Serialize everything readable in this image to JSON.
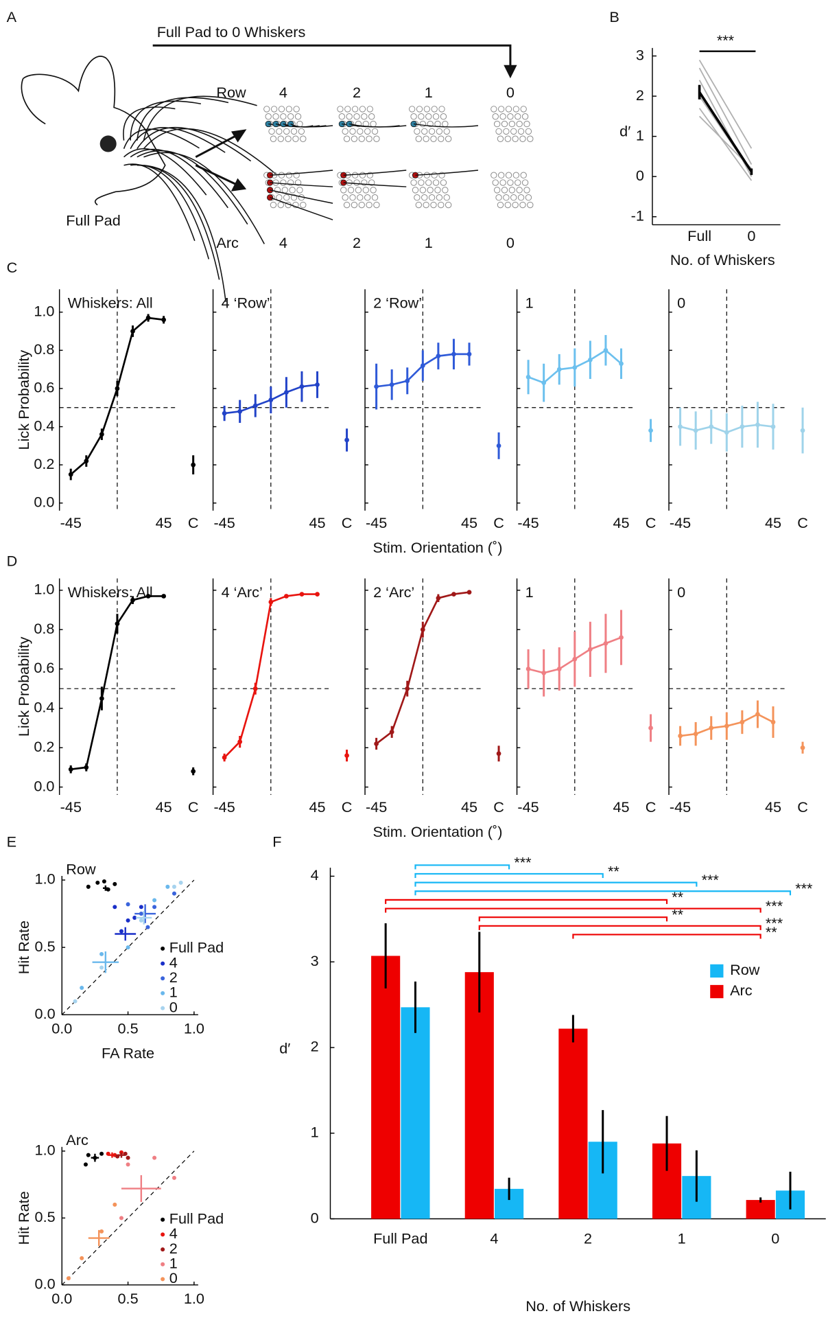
{
  "panel_labels": [
    "A",
    "B",
    "C",
    "D",
    "E",
    "F"
  ],
  "diagram": {
    "title": "Full Pad to 0 Whiskers",
    "row_label": "Row",
    "arc_label": "Arc",
    "row_counts": [
      "4",
      "2",
      "1",
      "0"
    ],
    "arc_counts": [
      "4",
      "2",
      "1",
      "0"
    ],
    "caption": "Full Pad"
  },
  "chart_data": [
    {
      "type": "paired-line",
      "xlabel": "No. of Whiskers",
      "ylabel": "d′",
      "annotation": "***",
      "categories": [
        "Full",
        "0"
      ],
      "ylim": [
        -1.2,
        3.2
      ],
      "yticks": [
        -1,
        0,
        1,
        2,
        3
      ],
      "series": [
        {
          "color": "#b0b0b0",
          "values": [
            2.9,
            0.7
          ]
        },
        {
          "color": "#b0b0b0",
          "values": [
            2.7,
            0.3
          ]
        },
        {
          "color": "#b0b0b0",
          "values": [
            2.4,
            0.0
          ]
        },
        {
          "color": "#b0b0b0",
          "values": [
            2.0,
            0.1
          ]
        },
        {
          "color": "#b0b0b0",
          "values": [
            1.7,
            -0.1
          ]
        },
        {
          "color": "#b0b0b0",
          "values": [
            1.5,
            0.2
          ]
        }
      ],
      "mean": {
        "color": "#000000",
        "values": [
          2.1,
          0.12
        ],
        "errors": [
          0.18,
          0.08
        ]
      }
    },
    {
      "type": "line-panels",
      "xlabel": "Stim. Orientation (˚)",
      "ylabel": "Lick Probability",
      "x": [
        -45,
        -30,
        -15,
        0,
        15,
        30,
        45
      ],
      "xlim": [
        -56,
        56
      ],
      "xticks": [
        -45,
        45
      ],
      "catch_label": "C",
      "ylim": [
        -0.04,
        1.12
      ],
      "yticks": [
        {
          "value": 0,
          "label": "0.0"
        },
        {
          "value": 0.2,
          "label": "0.2"
        },
        {
          "value": 0.4,
          "label": "0.4"
        },
        {
          "value": 0.6,
          "label": "0.6"
        },
        {
          "value": 0.8,
          "label": "0.8"
        },
        {
          "value": 1,
          "label": "1.0"
        }
      ],
      "hline": 0.5,
      "vline": 0,
      "panels": [
        {
          "title": "Whiskers: All",
          "color": "#000000",
          "values": [
            0.15,
            0.22,
            0.36,
            0.6,
            0.9,
            0.97,
            0.96
          ],
          "errors": [
            0.03,
            0.03,
            0.03,
            0.04,
            0.03,
            0.02,
            0.02
          ],
          "catch_value": 0.2,
          "catch_error": 0.05
        },
        {
          "title": "4 ‘Row’",
          "color": "#2243c8",
          "values": [
            0.47,
            0.48,
            0.51,
            0.54,
            0.58,
            0.61,
            0.62
          ],
          "errors": [
            0.04,
            0.06,
            0.06,
            0.07,
            0.08,
            0.08,
            0.07
          ],
          "catch_value": 0.33,
          "catch_error": 0.06
        },
        {
          "title": "2 ‘Row’",
          "color": "#2f5ad8",
          "values": [
            0.61,
            0.62,
            0.64,
            0.72,
            0.77,
            0.78,
            0.78
          ],
          "errors": [
            0.12,
            0.08,
            0.07,
            0.08,
            0.07,
            0.08,
            0.06
          ],
          "catch_value": 0.3,
          "catch_error": 0.07
        },
        {
          "title": "1",
          "color": "#6cc0ee",
          "values": [
            0.66,
            0.63,
            0.7,
            0.71,
            0.75,
            0.8,
            0.73
          ],
          "errors": [
            0.09,
            0.1,
            0.08,
            0.1,
            0.1,
            0.08,
            0.08
          ],
          "catch_value": 0.38,
          "catch_error": 0.06
        },
        {
          "title": "0",
          "color": "#9fd3ea",
          "values": [
            0.4,
            0.38,
            0.4,
            0.37,
            0.4,
            0.41,
            0.4
          ],
          "errors": [
            0.1,
            0.1,
            0.09,
            0.1,
            0.11,
            0.12,
            0.12
          ],
          "catch_value": 0.38,
          "catch_error": 0.12
        }
      ]
    },
    {
      "type": "line-panels",
      "xlabel": "Stim. Orientation (˚)",
      "ylabel": "Lick Probability",
      "x": [
        -45,
        -30,
        -15,
        0,
        15,
        30,
        45
      ],
      "xlim": [
        -56,
        56
      ],
      "xticks": [
        -45,
        45
      ],
      "catch_label": "C",
      "ylim": [
        -0.04,
        1.06
      ],
      "yticks": [
        {
          "value": 0,
          "label": "0.0"
        },
        {
          "value": 0.2,
          "label": "0.2"
        },
        {
          "value": 0.4,
          "label": "0.4"
        },
        {
          "value": 0.6,
          "label": "0.6"
        },
        {
          "value": 0.8,
          "label": "0.8"
        },
        {
          "value": 1,
          "label": "1.0"
        }
      ],
      "hline": 0.5,
      "vline": 0,
      "panels": [
        {
          "title": "Whiskers: All",
          "color": "#000000",
          "values": [
            0.09,
            0.1,
            0.45,
            0.83,
            0.95,
            0.97,
            0.97
          ],
          "errors": [
            0.02,
            0.02,
            0.06,
            0.05,
            0.02,
            0.01,
            0.01
          ],
          "catch_value": 0.08,
          "catch_error": 0.02
        },
        {
          "title": "4 ‘Arc’",
          "color": "#e8140f",
          "values": [
            0.15,
            0.23,
            0.5,
            0.94,
            0.97,
            0.98,
            0.98
          ],
          "errors": [
            0.02,
            0.03,
            0.03,
            0.02,
            0.01,
            0.01,
            0.01
          ],
          "catch_value": 0.16,
          "catch_error": 0.03
        },
        {
          "title": "2 ‘Arc’",
          "color": "#a01818",
          "values": [
            0.22,
            0.28,
            0.5,
            0.8,
            0.96,
            0.98,
            0.99
          ],
          "errors": [
            0.03,
            0.03,
            0.04,
            0.04,
            0.02,
            0.01,
            0.01
          ],
          "catch_value": 0.17,
          "catch_error": 0.04
        },
        {
          "title": "1",
          "color": "#ef7f84",
          "values": [
            0.6,
            0.58,
            0.6,
            0.65,
            0.7,
            0.73,
            0.76
          ],
          "errors": [
            0.1,
            0.12,
            0.11,
            0.14,
            0.14,
            0.15,
            0.14
          ],
          "catch_value": 0.3,
          "catch_error": 0.07
        },
        {
          "title": "0",
          "color": "#f4935a",
          "values": [
            0.26,
            0.27,
            0.3,
            0.31,
            0.33,
            0.37,
            0.33
          ],
          "errors": [
            0.05,
            0.06,
            0.06,
            0.07,
            0.06,
            0.07,
            0.08
          ],
          "catch_value": 0.2,
          "catch_error": 0.03
        }
      ]
    },
    {
      "type": "scatter",
      "title": "Row",
      "xlabel": "FA Rate",
      "ylabel": "Hit Rate",
      "xlim": [
        0,
        1
      ],
      "ylim": [
        0,
        1
      ],
      "xticks": [
        {
          "value": 0,
          "label": "0.0"
        },
        {
          "value": 0.5,
          "label": "0.5"
        },
        {
          "value": 1,
          "label": "1.0"
        }
      ],
      "yticks": [
        {
          "value": 0,
          "label": "0.0"
        },
        {
          "value": 0.5,
          "label": "0.5"
        },
        {
          "value": 1,
          "label": "1.0"
        }
      ],
      "series": [
        {
          "name": "Full Pad",
          "color": "#000000",
          "x": [
            0.2,
            0.27,
            0.32,
            0.4,
            0.35
          ],
          "y": [
            0.95,
            0.98,
            0.99,
            0.97,
            0.93
          ],
          "mean_x": 0.33,
          "mean_y": 0.94,
          "xerr": 0.02,
          "yerr": 0.02
        },
        {
          "name": "4",
          "color": "#1a2fc8",
          "x": [
            0.4,
            0.45,
            0.5,
            0.55,
            0.6
          ],
          "y": [
            0.8,
            0.62,
            0.7,
            0.72,
            0.8
          ],
          "mean_x": 0.48,
          "mean_y": 0.6,
          "xerr": 0.08,
          "yerr": 0.05
        },
        {
          "name": "2",
          "color": "#3a64dc",
          "x": [
            0.5,
            0.6,
            0.7,
            0.65,
            0.85
          ],
          "y": [
            0.82,
            0.75,
            0.8,
            0.65,
            0.9
          ],
          "mean_x": 0.63,
          "mean_y": 0.75,
          "xerr": 0.08,
          "yerr": 0.07
        },
        {
          "name": "1",
          "color": "#6ab8ec",
          "x": [
            0.3,
            0.5,
            0.7,
            0.8,
            0.15
          ],
          "y": [
            0.45,
            0.5,
            0.85,
            0.95,
            0.2
          ],
          "mean_x": 0.33,
          "mean_y": 0.39,
          "xerr": 0.1,
          "yerr": 0.08
        },
        {
          "name": "0",
          "color": "#a7d3ee",
          "x": [
            0.1,
            0.85,
            0.9,
            0.3,
            0.6
          ],
          "y": [
            0.1,
            0.95,
            0.98,
            0.35,
            0.7
          ],
          "mean_x": 0.62,
          "mean_y": 0.72,
          "xerr": 0.06,
          "yerr": 0.05
        }
      ]
    },
    {
      "type": "scatter",
      "title": "Arc",
      "xlabel": "FA Rate",
      "ylabel": "Hit Rate",
      "xlim": [
        0,
        1
      ],
      "ylim": [
        0,
        1
      ],
      "xticks": [
        {
          "value": 0,
          "label": "0.0"
        },
        {
          "value": 0.5,
          "label": "0.5"
        },
        {
          "value": 1,
          "label": "1.0"
        }
      ],
      "yticks": [
        {
          "value": 0,
          "label": "0.0"
        },
        {
          "value": 0.5,
          "label": "0.5"
        },
        {
          "value": 1,
          "label": "1.0"
        }
      ],
      "series": [
        {
          "name": "Full Pad",
          "color": "#000000",
          "x": [
            0.2,
            0.18,
            0.25,
            0.3
          ],
          "y": [
            0.97,
            0.9,
            0.95,
            0.98
          ],
          "mean_x": 0.25,
          "mean_y": 0.95,
          "xerr": 0.03,
          "yerr": 0.03
        },
        {
          "name": "4",
          "color": "#e8140f",
          "x": [
            0.35,
            0.4,
            0.45
          ],
          "y": [
            0.98,
            0.97,
            0.99
          ],
          "mean_x": 0.38,
          "mean_y": 0.97,
          "xerr": 0.03,
          "yerr": 0.02
        },
        {
          "name": "2",
          "color": "#a01818",
          "x": [
            0.42,
            0.48,
            0.5
          ],
          "y": [
            0.96,
            0.98,
            0.95
          ],
          "mean_x": 0.45,
          "mean_y": 0.97,
          "xerr": 0.03,
          "yerr": 0.02
        },
        {
          "name": "1",
          "color": "#ef7f84",
          "x": [
            0.5,
            0.7,
            0.85,
            0.45
          ],
          "y": [
            0.9,
            0.95,
            0.8,
            0.5
          ],
          "mean_x": 0.6,
          "mean_y": 0.72,
          "xerr": 0.15,
          "yerr": 0.1
        },
        {
          "name": "0",
          "color": "#f4935a",
          "x": [
            0.05,
            0.15,
            0.3,
            0.4
          ],
          "y": [
            0.05,
            0.2,
            0.4,
            0.6
          ],
          "mean_x": 0.28,
          "mean_y": 0.35,
          "xerr": 0.08,
          "yerr": 0.06
        }
      ]
    },
    {
      "type": "bar",
      "xlabel": "No. of Whiskers",
      "ylabel": "d′",
      "categories": [
        "Full Pad",
        "4",
        "2",
        "1",
        "0"
      ],
      "ylim": [
        0,
        4.1
      ],
      "yticks": [
        0,
        1,
        2,
        3,
        4
      ],
      "series": [
        {
          "name": "Row",
          "color": "#16b7f5",
          "values": [
            2.47,
            0.35,
            0.9,
            0.5,
            0.33
          ],
          "errors": [
            0.3,
            0.13,
            0.37,
            0.3,
            0.22
          ]
        },
        {
          "name": "Arc",
          "color": "#ee0000",
          "values": [
            3.07,
            2.88,
            2.22,
            0.88,
            0.22
          ],
          "errors": [
            0.38,
            0.47,
            0.16,
            0.32,
            0.03
          ]
        }
      ],
      "brackets": [
        {
          "series": 0,
          "from": 0,
          "to": 1,
          "label": "***"
        },
        {
          "series": 0,
          "from": 0,
          "to": 2,
          "label": "**"
        },
        {
          "series": 0,
          "from": 0,
          "to": 3,
          "label": "***"
        },
        {
          "series": 0,
          "from": 0,
          "to": 4,
          "label": "***"
        },
        {
          "series": 1,
          "from": 0,
          "to": 3,
          "label": "**"
        },
        {
          "series": 1,
          "from": 0,
          "to": 4,
          "label": "***"
        },
        {
          "series": 1,
          "from": 1,
          "to": 3,
          "label": "**"
        },
        {
          "series": 1,
          "from": 1,
          "to": 4,
          "label": "***"
        },
        {
          "series": 1,
          "from": 2,
          "to": 4,
          "label": "**"
        }
      ]
    }
  ]
}
